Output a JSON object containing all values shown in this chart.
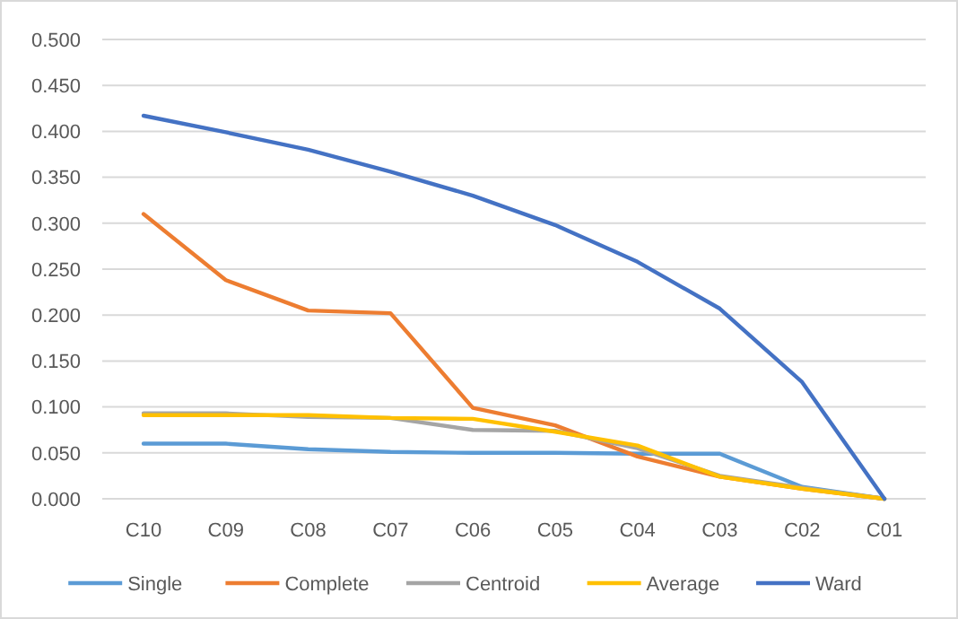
{
  "chart_data": {
    "type": "line",
    "categories": [
      "C10",
      "C09",
      "C08",
      "C07",
      "C06",
      "C05",
      "C04",
      "C03",
      "C02",
      "C01"
    ],
    "ylim": [
      0,
      0.5
    ],
    "yticks": [
      {
        "value": 0,
        "label": "0.000"
      },
      {
        "value": 0.05,
        "label": "0.050"
      },
      {
        "value": 0.1,
        "label": "0.100"
      },
      {
        "value": 0.15,
        "label": "0.150"
      },
      {
        "value": 0.2,
        "label": "0.200"
      },
      {
        "value": 0.25,
        "label": "0.250"
      },
      {
        "value": 0.3,
        "label": "0.300"
      },
      {
        "value": 0.35,
        "label": "0.350"
      },
      {
        "value": 0.4,
        "label": "0.400"
      },
      {
        "value": 0.45,
        "label": "0.450"
      },
      {
        "value": 0.5,
        "label": "0.500"
      }
    ],
    "grid": "y",
    "legend": "bottom",
    "marker": "none",
    "line_style": "solid",
    "series": [
      {
        "name": "Single",
        "color": "#5b9bd5",
        "values": [
          0.06,
          0.06,
          0.054,
          0.051,
          0.05,
          0.05,
          0.049,
          0.049,
          0.013,
          0.0
        ]
      },
      {
        "name": "Complete",
        "color": "#ed7d31",
        "values": [
          0.31,
          0.238,
          0.205,
          0.202,
          0.099,
          0.08,
          0.046,
          0.024,
          0.011,
          0.0
        ]
      },
      {
        "name": "Centroid",
        "color": "#a5a5a5",
        "values": [
          0.093,
          0.093,
          0.089,
          0.088,
          0.075,
          0.074,
          0.055,
          0.025,
          0.012,
          0.0
        ]
      },
      {
        "name": "Average",
        "color": "#ffc000",
        "values": [
          0.091,
          0.091,
          0.091,
          0.088,
          0.087,
          0.073,
          0.058,
          0.024,
          0.011,
          0.0
        ]
      },
      {
        "name": "Ward",
        "color": "#4472c4",
        "values": [
          0.417,
          0.399,
          0.38,
          0.356,
          0.33,
          0.298,
          0.258,
          0.207,
          0.127,
          0.0
        ]
      }
    ]
  }
}
